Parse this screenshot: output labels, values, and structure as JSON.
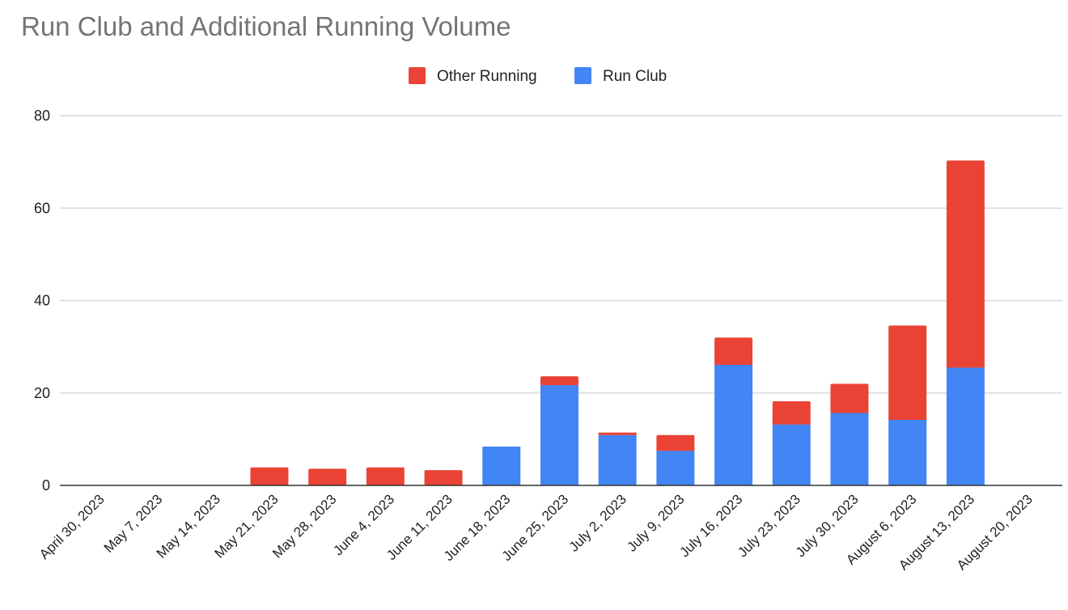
{
  "chart_data": {
    "type": "bar",
    "stacked": true,
    "title": "Run Club and Additional Running Volume",
    "xlabel": "",
    "ylabel": "",
    "ylim": [
      0,
      80
    ],
    "yticks": [
      0,
      20,
      40,
      60,
      80
    ],
    "grid": true,
    "legend_position": "top",
    "categories": [
      "April 30, 2023",
      "May 7, 2023",
      "May 14, 2023",
      "May 21, 2023",
      "May 28, 2023",
      "June 4, 2023",
      "June 11, 2023",
      "June 18, 2023",
      "June 25, 2023",
      "July 2, 2023",
      "July 9, 2023",
      "July 16, 2023",
      "July 23, 2023",
      "July 30, 2023",
      "August 6, 2023",
      "August 13, 2023",
      "August 20, 2023"
    ],
    "series": [
      {
        "name": "Run Club",
        "color": "#4285f4",
        "values": [
          0,
          0,
          0,
          0,
          0,
          0,
          0,
          8.4,
          21.7,
          10.9,
          7.5,
          26.1,
          13.2,
          15.7,
          14.2,
          25.5,
          0
        ]
      },
      {
        "name": "Other Running",
        "color": "#ea4335",
        "values": [
          0,
          0,
          0,
          3.9,
          3.6,
          3.9,
          3.3,
          0,
          1.9,
          0.5,
          3.4,
          5.9,
          5.0,
          6.3,
          20.4,
          44.8,
          0
        ]
      }
    ],
    "legend_order": [
      "Other Running",
      "Run Club"
    ]
  }
}
